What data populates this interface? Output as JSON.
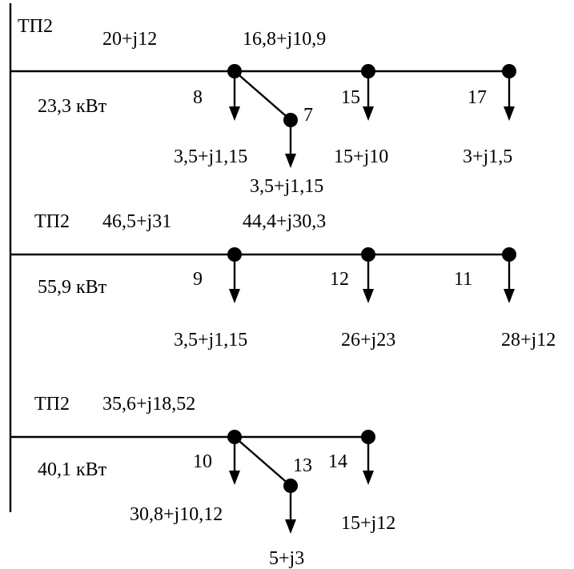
{
  "colors": {
    "line": "#000000",
    "background": "#ffffff"
  },
  "feeders": [
    {
      "source": "ТП2",
      "segment_loads": [
        "20+j12",
        "16,8+j10,9"
      ],
      "power": "23,3 кВт",
      "nodes": [
        {
          "id": "8",
          "load": "3,5+j1,15"
        },
        {
          "id": "7",
          "load": "3,5+j1,15",
          "branch_of": "8"
        },
        {
          "id": "15",
          "load": "15+j10"
        },
        {
          "id": "17",
          "load": "3+j1,5"
        }
      ]
    },
    {
      "source": "ТП2",
      "segment_loads": [
        "46,5+j31",
        "44,4+j30,3"
      ],
      "power": "55,9 кВт",
      "nodes": [
        {
          "id": "9",
          "load": "3,5+j1,15"
        },
        {
          "id": "12",
          "load": "26+j23"
        },
        {
          "id": "11",
          "load": "28+j12"
        }
      ]
    },
    {
      "source": "ТП2",
      "segment_loads": [
        "35,6+j18,52"
      ],
      "power": "40,1 кВт",
      "nodes": [
        {
          "id": "10",
          "load": "30,8+j10,12"
        },
        {
          "id": "13",
          "load": "5+j3",
          "branch_of": "10"
        },
        {
          "id": "14",
          "load": "15+j12"
        }
      ]
    }
  ]
}
